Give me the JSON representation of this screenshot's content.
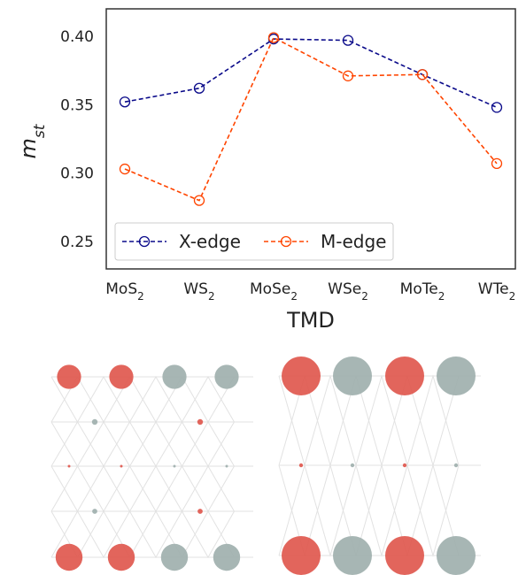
{
  "chart_data": {
    "type": "line",
    "categories": [
      "MoS2",
      "WS2",
      "MoSe2",
      "WSe2",
      "MoTe2",
      "WTe2"
    ],
    "series": [
      {
        "name": "X-edge",
        "values": [
          0.352,
          0.362,
          0.398,
          0.397,
          0.372,
          0.348
        ],
        "color": "#0a0a8a"
      },
      {
        "name": "M-edge",
        "values": [
          0.303,
          0.28,
          0.399,
          0.371,
          0.372,
          0.307
        ],
        "color": "#ff4500"
      }
    ],
    "xlabel": "TMD",
    "ylabel": "m_st",
    "ylim": [
      0.23,
      0.42
    ],
    "yticks": [
      "0.25",
      "0.30",
      "0.35",
      "0.40"
    ],
    "legend_position": "lower-left",
    "grid": false
  },
  "lattice_panels": {
    "colors": {
      "red": "#e0584e",
      "grey": "#9fb0ae",
      "grid": "#e2e2e2"
    },
    "left": {
      "rows": [
        {
          "sites": [
            {
              "c": "red",
              "r": 0.85
            },
            {
              "c": "red",
              "r": 0.85
            },
            {
              "c": "grey",
              "r": 0.85
            },
            {
              "c": "grey",
              "r": 0.85
            }
          ]
        },
        {
          "sites": [
            {
              "c": "grey",
              "r": 0.2
            },
            {
              "c": "red",
              "r": 0.2
            }
          ]
        },
        {
          "sites": [
            {
              "c": "red",
              "r": 0.06
            },
            {
              "c": "red",
              "r": 0.06
            },
            {
              "c": "grey",
              "r": 0.06
            },
            {
              "c": "grey",
              "r": 0.06
            }
          ]
        },
        {
          "sites": [
            {
              "c": "grey",
              "r": 0.18
            },
            {
              "c": "red",
              "r": 0.18
            }
          ]
        },
        {
          "sites": [
            {
              "c": "red",
              "r": 0.95
            },
            {
              "c": "red",
              "r": 0.95
            },
            {
              "c": "grey",
              "r": 0.95
            },
            {
              "c": "grey",
              "r": 0.95
            }
          ]
        }
      ]
    },
    "right": {
      "rows": [
        {
          "sites": [
            {
              "c": "red",
              "r": 1.0
            },
            {
              "c": "grey",
              "r": 1.0
            },
            {
              "c": "red",
              "r": 1.0
            },
            {
              "c": "grey",
              "r": 1.0
            }
          ]
        },
        {
          "sites": [
            {
              "c": "red",
              "r": 0.1
            },
            {
              "c": "grey",
              "r": 0.1
            },
            {
              "c": "red",
              "r": 0.1
            },
            {
              "c": "grey",
              "r": 0.1
            }
          ]
        },
        {
          "sites": [
            {
              "c": "red",
              "r": 1.0
            },
            {
              "c": "grey",
              "r": 1.0
            },
            {
              "c": "red",
              "r": 1.0
            },
            {
              "c": "grey",
              "r": 1.0
            }
          ]
        }
      ]
    }
  }
}
